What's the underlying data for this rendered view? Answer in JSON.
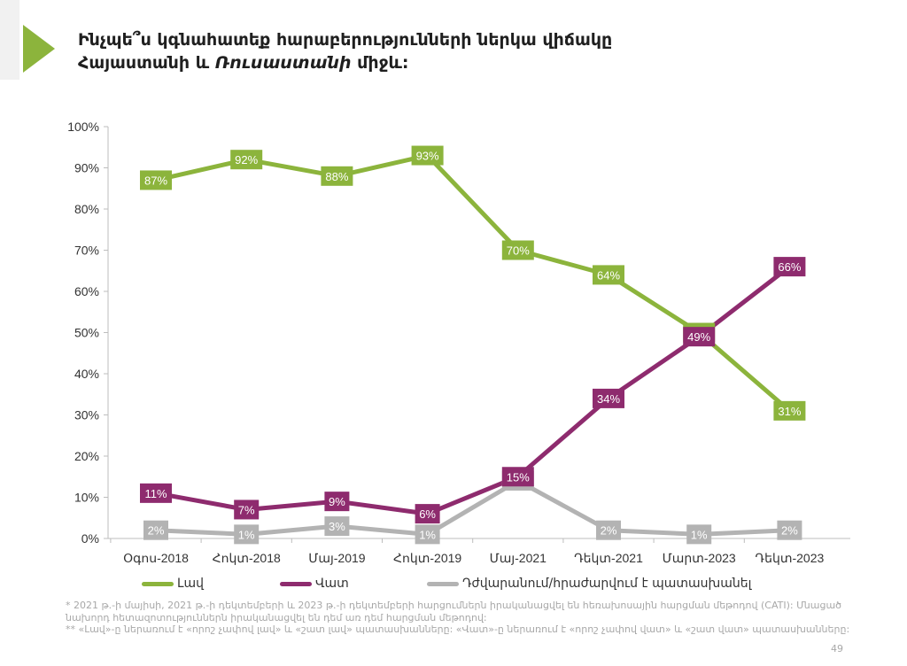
{
  "title": {
    "line1": "Ինչպե՞ս կգնահատեք հարաբերությունների ներկա վիճակը",
    "line2_prefix": "Հայաստանի և ",
    "line2_italic": "Ռուսաստանի",
    "line2_suffix": " միջև:"
  },
  "colors": {
    "accent": "#8cb43c",
    "good": "#8cb43c",
    "bad": "#8e2b6e",
    "hard": "#b3b3b3"
  },
  "chart_data": {
    "type": "line",
    "categories": [
      "Օգոս-2018",
      "Հոկտ-2018",
      "Մայ-2019",
      "Հոկտ-2019",
      "Մայ-2021",
      "Դեկտ-2021",
      "Մարտ-2023",
      "Դեկտ-2023"
    ],
    "series": [
      {
        "name": "Լավ",
        "color": "#8cb43c",
        "values": [
          87,
          92,
          88,
          93,
          70,
          64,
          50,
          31
        ]
      },
      {
        "name": "Վատ",
        "color": "#8e2b6e",
        "values": [
          11,
          7,
          9,
          6,
          15,
          34,
          49,
          66
        ]
      },
      {
        "name": "Դժվարանում/հրաժարվում է պատասխանել",
        "color": "#b3b3b3",
        "values": [
          2,
          1,
          3,
          1,
          14,
          2,
          1,
          2
        ]
      }
    ],
    "ylim": [
      0,
      100
    ],
    "yticks": [
      "0%",
      "10%",
      "20%",
      "30%",
      "40%",
      "50%",
      "60%",
      "70%",
      "80%",
      "90%",
      "100%"
    ],
    "value_suffix": "%",
    "grid": false,
    "legend_position": "bottom"
  },
  "footnotes": {
    "note1": "* 2021 թ.-ի մայիսի, 2021 թ.-ի դեկտեմբերի և 2023 թ.-ի դեկտեմբերի հարցումներն իրականացվել են հեռախոսային հարցման մեթոդով (CATI): Մնացած նախորդ հետազոտություններն իրականացվել են դեմ առ դեմ հարցման մեթոդով:",
    "note2": "** «Լավ»-ը ներառում է «որոշ չափով լավ» և «շատ լավ» պատասխանները: «Վատ»-ը ներառում է «որոշ չափով վատ» և «շատ վատ» պատասխանները:"
  },
  "page_number": "49"
}
